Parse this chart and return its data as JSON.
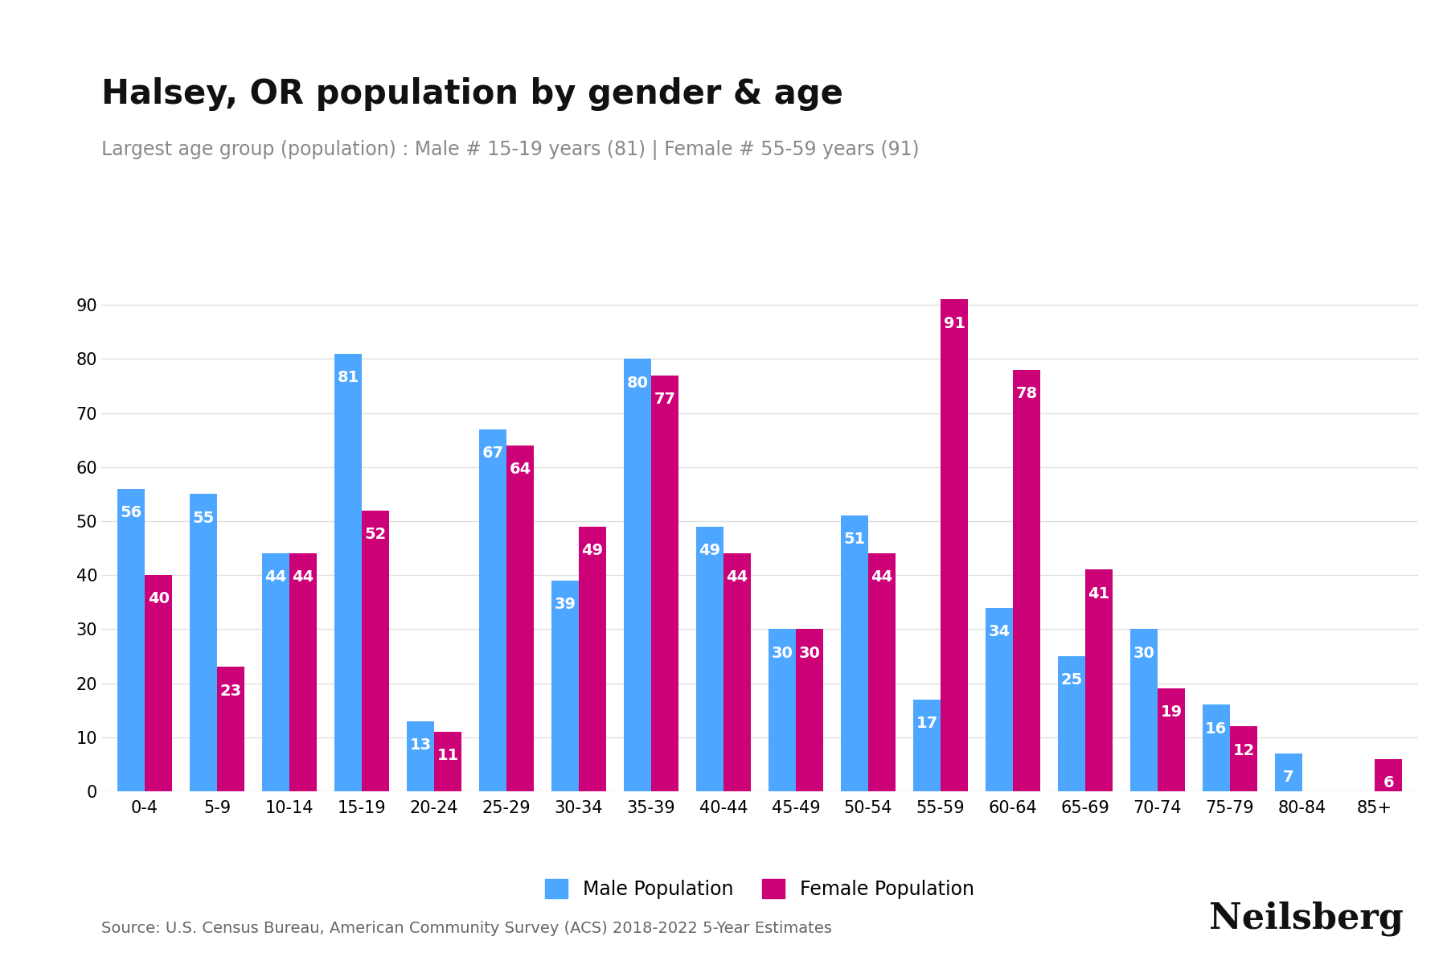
{
  "title": "Halsey, OR population by gender & age",
  "subtitle": "Largest age group (population) : Male # 15-19 years (81) | Female # 55-59 years (91)",
  "source": "Source: U.S. Census Bureau, American Community Survey (ACS) 2018-2022 5-Year Estimates",
  "branding": "Neilsberg",
  "age_groups": [
    "0-4",
    "5-9",
    "10-14",
    "15-19",
    "20-24",
    "25-29",
    "30-34",
    "35-39",
    "40-44",
    "45-49",
    "50-54",
    "55-59",
    "60-64",
    "65-69",
    "70-74",
    "75-79",
    "80-84",
    "85+"
  ],
  "male": [
    56,
    55,
    44,
    81,
    13,
    67,
    39,
    80,
    49,
    30,
    51,
    17,
    34,
    25,
    30,
    16,
    7,
    0
  ],
  "female": [
    40,
    23,
    44,
    52,
    11,
    64,
    49,
    77,
    44,
    30,
    44,
    91,
    78,
    41,
    19,
    12,
    0,
    6
  ],
  "male_color": "#4da6ff",
  "female_color": "#cc0077",
  "bar_label_color": "#ffffff",
  "title_fontsize": 30,
  "subtitle_fontsize": 17,
  "tick_fontsize": 15,
  "label_fontsize": 14,
  "legend_fontsize": 17,
  "source_fontsize": 14,
  "branding_fontsize": 32,
  "ylim": [
    0,
    100
  ],
  "yticks": [
    0,
    10,
    20,
    30,
    40,
    50,
    60,
    70,
    80,
    90
  ],
  "background_color": "#ffffff",
  "grid_color": "#e0e0e0"
}
